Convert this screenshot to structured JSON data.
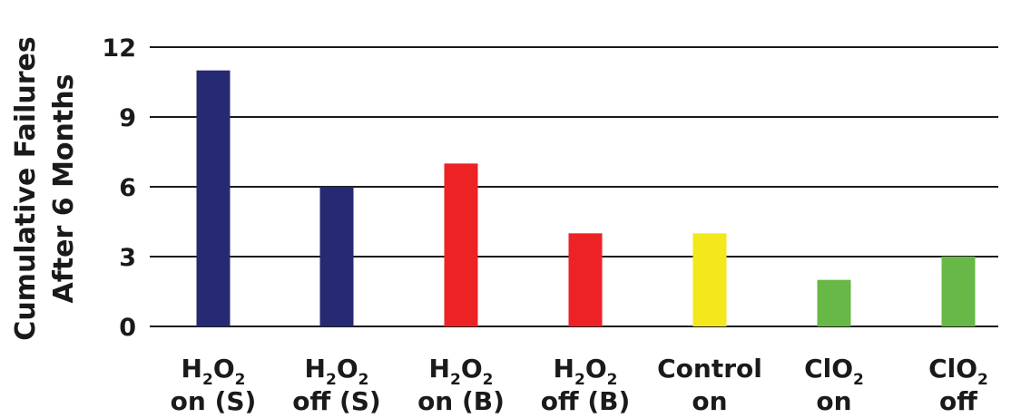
{
  "chart_data": {
    "type": "bar",
    "ylabel": "Cumulative Failures",
    "ylabel_line2": "After 6 Months",
    "ylim": [
      0,
      12
    ],
    "yticks": [
      "0",
      "3",
      "6",
      "9",
      "12"
    ],
    "grid": true,
    "categories": [
      {
        "line1": "H2O2",
        "line2": "on (S)",
        "value": 11,
        "color": "#252a72"
      },
      {
        "line1": "H2O2",
        "line2": "off (S)",
        "value": 6,
        "color": "#252a72"
      },
      {
        "line1": "H2O2",
        "line2": "on (B)",
        "value": 7,
        "color": "#ed2224"
      },
      {
        "line1": "H2O2",
        "line2": "off (B)",
        "value": 4,
        "color": "#ed2224"
      },
      {
        "line1": "Control",
        "line2": "on",
        "value": 4,
        "color": "#f2e81c"
      },
      {
        "line1": "ClO2",
        "line2": "on",
        "value": 2,
        "color": "#67b846"
      },
      {
        "line1": "ClO2",
        "line2": "off",
        "value": 3,
        "color": "#67b846"
      }
    ]
  }
}
